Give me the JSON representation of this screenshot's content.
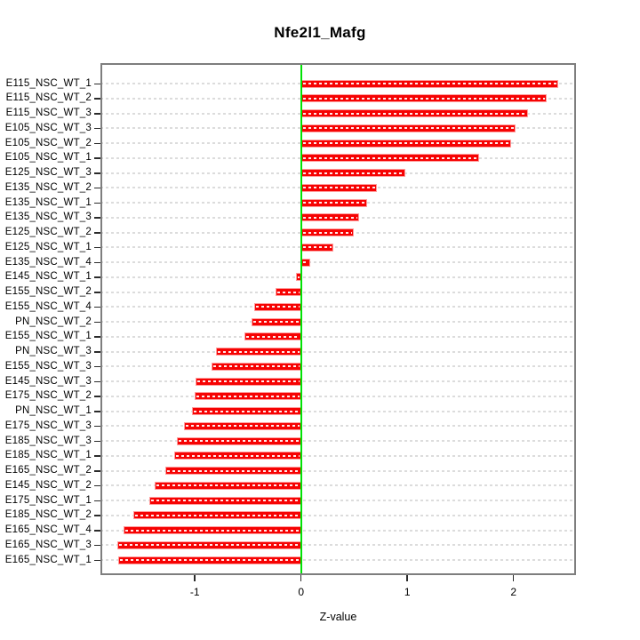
{
  "title": "Nfe2l1_Mafg",
  "chart_data": {
    "type": "bar",
    "orientation": "horizontal",
    "title": "Nfe2l1_Mafg",
    "xlabel": "Z-value",
    "ylabel": "",
    "x_ticks": [
      -1,
      0,
      1,
      2
    ],
    "xlim": [
      -1.9,
      2.6
    ],
    "grid": "dashed per-category horizontal lines",
    "legend": "none",
    "bar_color": "#ff0000",
    "zero_line_color": "#00e204",
    "categories": [
      "E115_NSC_WT_1",
      "E115_NSC_WT_2",
      "E115_NSC_WT_3",
      "E105_NSC_WT_3",
      "E105_NSC_WT_2",
      "E105_NSC_WT_1",
      "E125_NSC_WT_3",
      "E135_NSC_WT_2",
      "E135_NSC_WT_1",
      "E135_NSC_WT_3",
      "E125_NSC_WT_2",
      "E125_NSC_WT_1",
      "E135_NSC_WT_4",
      "E145_NSC_WT_1",
      "E155_NSC_WT_2",
      "E155_NSC_WT_4",
      "PN_NSC_WT_2",
      "E155_NSC_WT_1",
      "PN_NSC_WT_3",
      "E155_NSC_WT_3",
      "E145_NSC_WT_3",
      "E175_NSC_WT_2",
      "PN_NSC_WT_1",
      "E175_NSC_WT_3",
      "E185_NSC_WT_3",
      "E185_NSC_WT_1",
      "E165_NSC_WT_2",
      "E145_NSC_WT_2",
      "E175_NSC_WT_1",
      "E185_NSC_WT_2",
      "E165_NSC_WT_4",
      "E165_NSC_WT_3",
      "E165_NSC_WT_1"
    ],
    "values": [
      2.42,
      2.31,
      2.14,
      2.02,
      1.98,
      1.68,
      0.98,
      0.71,
      0.62,
      0.55,
      0.5,
      0.3,
      0.09,
      -0.05,
      -0.24,
      -0.44,
      -0.47,
      -0.53,
      -0.8,
      -0.84,
      -0.99,
      -1.0,
      -1.03,
      -1.1,
      -1.17,
      -1.19,
      -1.28,
      -1.38,
      -1.43,
      -1.58,
      -1.67,
      -1.73,
      -1.72
    ]
  }
}
